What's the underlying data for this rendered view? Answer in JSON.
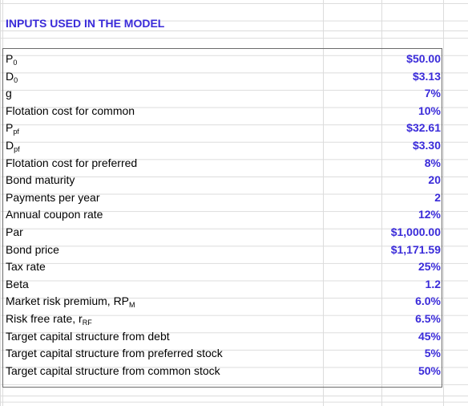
{
  "title": "INPUTS USED IN THE MODEL",
  "inputs": [
    {
      "main": "P",
      "sub": "0",
      "value": "$50.00"
    },
    {
      "main": "D",
      "sub": "0",
      "value": "$3.13"
    },
    {
      "main": "g",
      "sub": "",
      "value": "7%"
    },
    {
      "main": "Flotation cost for common",
      "sub": "",
      "value": "10%"
    },
    {
      "main": "P",
      "sub": "pf",
      "value": "$32.61"
    },
    {
      "main": "D",
      "sub": "pf",
      "value": "$3.30"
    },
    {
      "main": "Flotation cost for preferred",
      "sub": "",
      "value": "8%"
    },
    {
      "main": "Bond maturity",
      "sub": "",
      "value": "20"
    },
    {
      "main": "Payments per year",
      "sub": "",
      "value": "2"
    },
    {
      "main": "Annual coupon rate",
      "sub": "",
      "value": "12%"
    },
    {
      "main": "Par",
      "sub": "",
      "value": "$1,000.00"
    },
    {
      "main": "Bond price",
      "sub": "",
      "value": "$1,171.59"
    },
    {
      "main": "Tax rate",
      "sub": "",
      "value": "25%"
    },
    {
      "main": "Beta",
      "sub": "",
      "value": "1.2"
    },
    {
      "main": "Market risk premium, RP",
      "sub": "M",
      "value": "6.0%"
    },
    {
      "main": "Risk free rate, r",
      "sub": "RF",
      "value": "6.5%"
    },
    {
      "main": "Target capital structure from debt",
      "sub": "",
      "value": "45%"
    },
    {
      "main": "Target capital structure from preferred stock",
      "sub": "",
      "value": "5%"
    },
    {
      "main": "Target capital structure from common stock",
      "sub": "",
      "value": "50%"
    }
  ],
  "colors": {
    "accent": "#3a2bd9",
    "grid": "#dcdcdc",
    "border": "#6b6b6b"
  }
}
